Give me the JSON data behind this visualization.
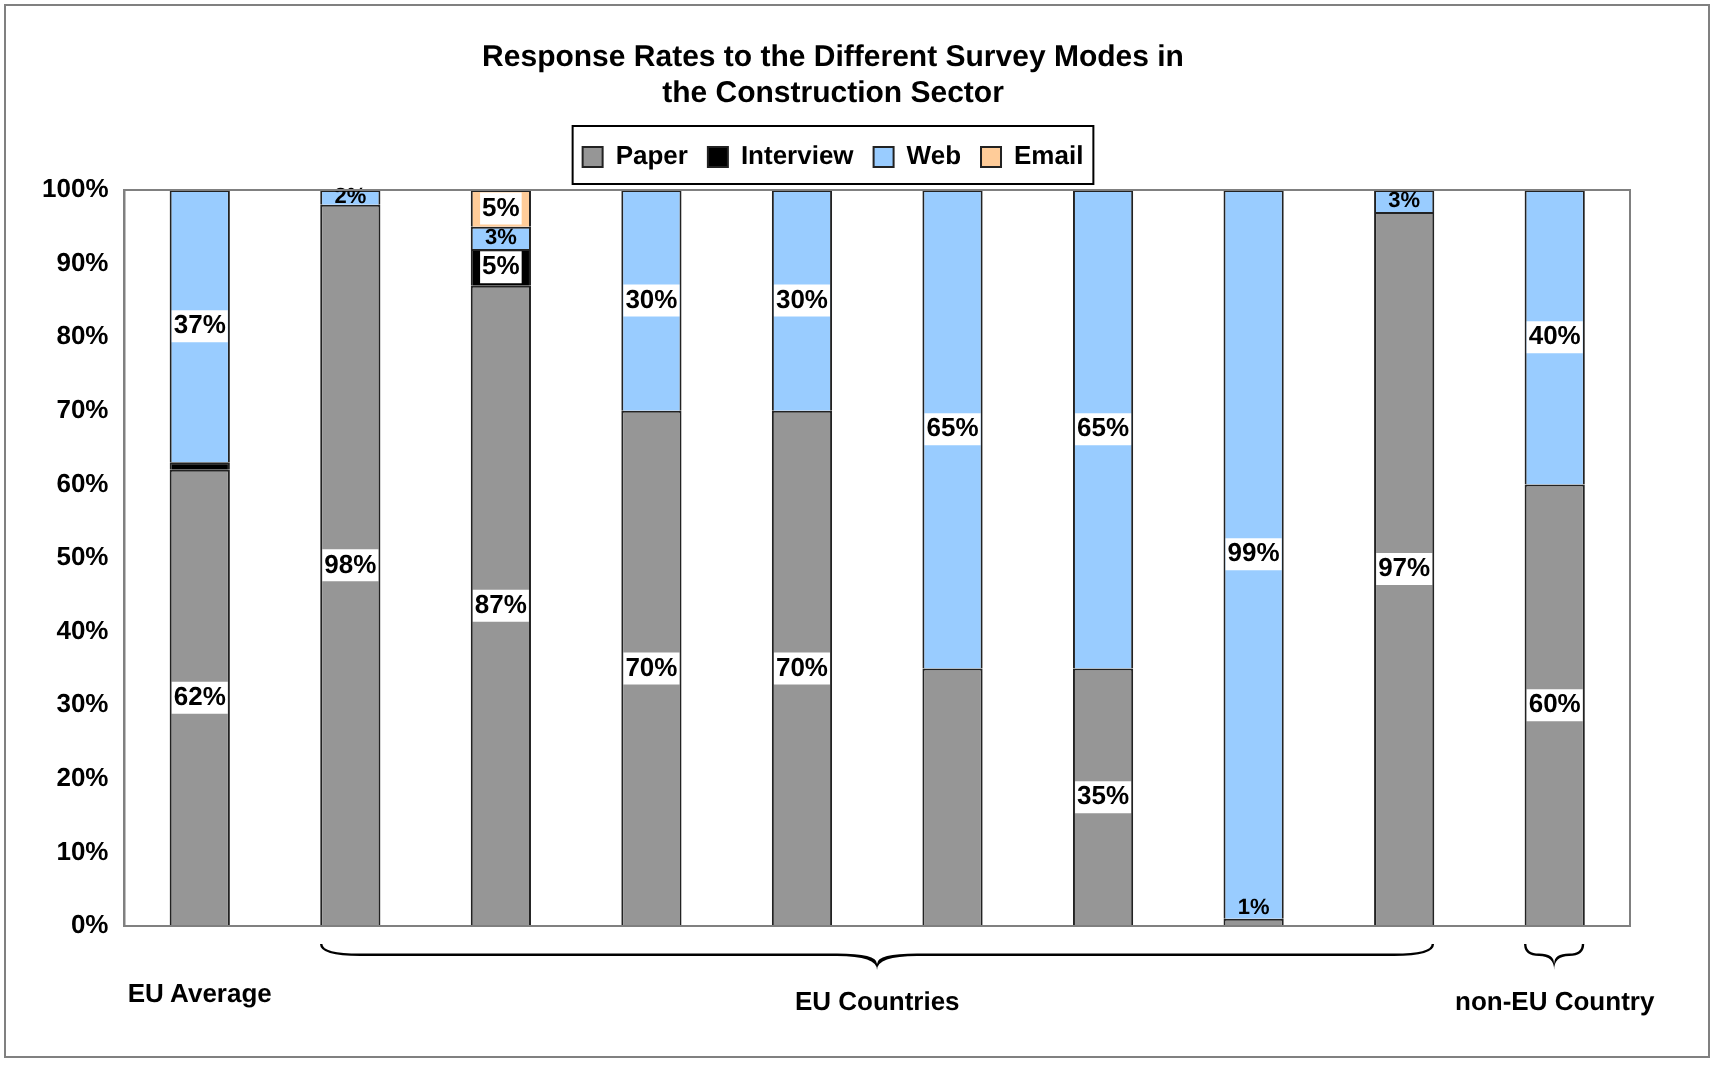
{
  "chart_data": {
    "type": "bar",
    "title": "Response Rates to the Different Survey Modes in the Construction Sector",
    "categories": [
      null,
      null,
      null,
      null,
      null,
      null,
      null,
      null,
      null,
      null
    ],
    "stacked": true,
    "series": [
      {
        "name": "Paper",
        "color": "#969696",
        "values": [
          62,
          98,
          87,
          70,
          70,
          35,
          35,
          1,
          97,
          60
        ],
        "value_labels": [
          "62%",
          "98%",
          "87%",
          "70%",
          "70%",
          null,
          "35%",
          "1%",
          "97%",
          "60%"
        ]
      },
      {
        "name": "Interview",
        "color": "#000000",
        "values": [
          1,
          0,
          5,
          0,
          0,
          0,
          0,
          0,
          0,
          0
        ],
        "value_labels": [
          null,
          null,
          "5%",
          null,
          null,
          null,
          null,
          null,
          null,
          null
        ]
      },
      {
        "name": "Web",
        "color": "#99ccff",
        "values": [
          37,
          2,
          3,
          30,
          30,
          65,
          65,
          99,
          3,
          40
        ],
        "value_labels": [
          "37%",
          "2%",
          "3%",
          "30%",
          "30%",
          "65%",
          "65%",
          "99%",
          "3%",
          "40%"
        ]
      },
      {
        "name": "Email",
        "color": "#ffcc99",
        "values": [
          0,
          0,
          5,
          0,
          0,
          0,
          0,
          0,
          0,
          0
        ],
        "value_labels": [
          null,
          null,
          "5%",
          null,
          null,
          null,
          null,
          null,
          null,
          null
        ]
      }
    ],
    "ylim": [
      0,
      100
    ],
    "yticks": [
      {
        "value": 0,
        "label": "0%"
      },
      {
        "value": 10,
        "label": "10%"
      },
      {
        "value": 20,
        "label": "20%"
      },
      {
        "value": 30,
        "label": "30%"
      },
      {
        "value": 40,
        "label": "40%"
      },
      {
        "value": 50,
        "label": "50%"
      },
      {
        "value": 60,
        "label": "60%"
      },
      {
        "value": 70,
        "label": "70%"
      },
      {
        "value": 80,
        "label": "80%"
      },
      {
        "value": 90,
        "label": "90%"
      },
      {
        "value": 100,
        "label": "100%"
      }
    ],
    "grid": false,
    "legend": "top",
    "annotations": [
      "EU Average",
      "EU Countries",
      "non-EU Country"
    ]
  }
}
